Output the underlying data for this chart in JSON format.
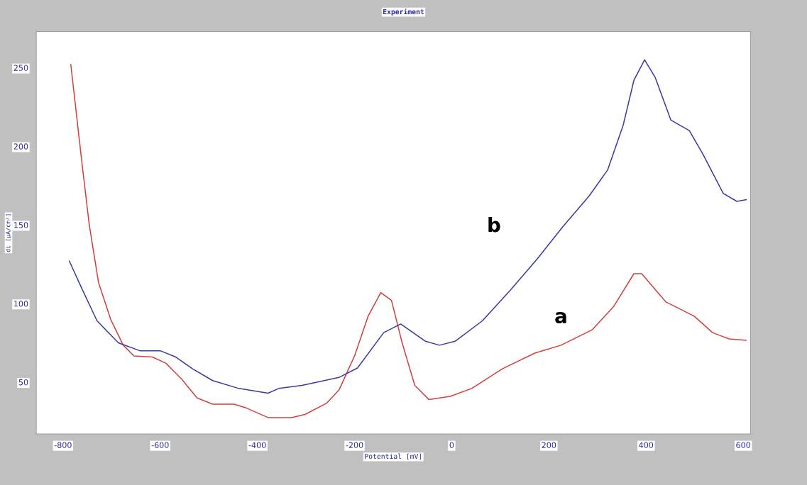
{
  "chart_data": {
    "type": "line",
    "title": "Experiment",
    "xlabel": "Potential [mV]",
    "ylabel": "di [µA/cm²]",
    "xlim": [
      -855,
      615
    ],
    "ylim": [
      17,
      273
    ],
    "xticks": [
      -800,
      -600,
      -400,
      -200,
      0,
      200,
      400,
      600
    ],
    "yticks": [
      50,
      100,
      150,
      200,
      250
    ],
    "grid": false,
    "marker": "none",
    "line_style": "solid",
    "series": [
      {
        "name": "a",
        "color": "#d04040",
        "x": [
          -784,
          -762,
          -746,
          -727,
          -702,
          -676,
          -654,
          -616,
          -588,
          -556,
          -524,
          -492,
          -448,
          -422,
          -378,
          -330,
          -302,
          -258,
          -232,
          -200,
          -172,
          -146,
          -124,
          -102,
          -76,
          -47,
          -3,
          41,
          105,
          171,
          225,
          289,
          333,
          375,
          391,
          441,
          499,
          537,
          571,
          606
        ],
        "values": [
          252,
          192,
          150,
          113.5,
          90,
          73.5,
          66.7,
          66,
          62,
          52,
          40,
          36,
          36,
          33.5,
          27.5,
          27.5,
          29.5,
          36.5,
          45,
          66.7,
          92,
          107,
          102,
          75,
          48,
          39,
          41,
          46,
          58.6,
          68.5,
          73.5,
          83.3,
          98,
          119,
          119,
          101,
          92,
          81.5,
          77.5,
          76.6
        ]
      },
      {
        "name": "b",
        "color": "#3a3aa0",
        "x": [
          -787,
          -762,
          -730,
          -686,
          -642,
          -600,
          -568,
          -534,
          -492,
          -438,
          -378,
          -356,
          -308,
          -232,
          -194,
          -140,
          -105,
          -54,
          -25,
          7,
          63,
          121,
          175,
          229,
          283,
          321,
          353,
          375,
          397,
          419,
          451,
          489,
          517,
          559,
          587,
          606
        ],
        "values": [
          127,
          110,
          89,
          75,
          70,
          70,
          66,
          58.6,
          51,
          46,
          43,
          46,
          48,
          53,
          59,
          81.5,
          87,
          76,
          73.5,
          76,
          89,
          108.6,
          128,
          149,
          168.5,
          185,
          213.5,
          242,
          255,
          243.7,
          216.7,
          210,
          195,
          170,
          165,
          166
        ]
      }
    ]
  }
}
